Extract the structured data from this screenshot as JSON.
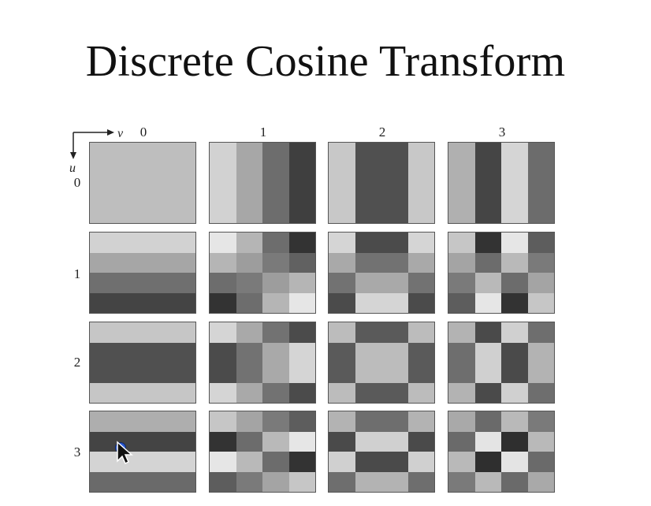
{
  "title": "Discrete Cosine Transform",
  "axis": {
    "v_label": "v",
    "u_label": "u"
  },
  "columns": [
    {
      "label": "0"
    },
    {
      "label": "1"
    },
    {
      "label": "2"
    },
    {
      "label": "3"
    }
  ],
  "rows": [
    {
      "label": "0"
    },
    {
      "label": "1"
    },
    {
      "label": "2"
    },
    {
      "label": "3"
    }
  ],
  "basis_tiles": [
    {
      "u": 0,
      "v": 0,
      "grid": [
        [
          "#bebebe"
        ]
      ]
    },
    {
      "u": 0,
      "v": 1,
      "grid": [
        [
          "#d2d2d2",
          "#a7a7a7",
          "#6d6d6d",
          "#3f3f3f"
        ]
      ]
    },
    {
      "u": 0,
      "v": 2,
      "grid": [
        [
          "#c8c8c8",
          "#505050",
          "#505050",
          "#c8c8c8"
        ]
      ]
    },
    {
      "u": 0,
      "v": 3,
      "grid": [
        [
          "#b0b0b0",
          "#454545",
          "#d5d5d5",
          "#6c6c6c"
        ]
      ]
    },
    {
      "u": 1,
      "v": 0,
      "grid": [
        [
          "#d2d2d2"
        ],
        [
          "#a6a6a6"
        ],
        [
          "#6f6f6f"
        ],
        [
          "#444444"
        ]
      ]
    },
    {
      "u": 1,
      "v": 1,
      "grid": [
        [
          "#e6e6e6",
          "#b5b5b5",
          "#6d6d6d",
          "#333333"
        ],
        [
          "#b5b5b5",
          "#9d9d9d",
          "#7a7a7a",
          "#616161"
        ],
        [
          "#6d6d6d",
          "#7a7a7a",
          "#9d9d9d",
          "#b5b5b5"
        ],
        [
          "#333333",
          "#6d6d6d",
          "#b5b5b5",
          "#e6e6e6"
        ]
      ]
    },
    {
      "u": 1,
      "v": 2,
      "grid": [
        [
          "#d5d5d5",
          "#4b4b4b",
          "#4b4b4b",
          "#d5d5d5"
        ],
        [
          "#a9a9a9",
          "#727272",
          "#727272",
          "#a9a9a9"
        ],
        [
          "#727272",
          "#a9a9a9",
          "#a9a9a9",
          "#727272"
        ],
        [
          "#4b4b4b",
          "#d5d5d5",
          "#d5d5d5",
          "#4b4b4b"
        ]
      ]
    },
    {
      "u": 1,
      "v": 3,
      "grid": [
        [
          "#c6c6c6",
          "#333333",
          "#e6e6e6",
          "#5d5d5d"
        ],
        [
          "#a4a4a4",
          "#6c6c6c",
          "#b9b9b9",
          "#7a7a7a"
        ],
        [
          "#7a7a7a",
          "#b9b9b9",
          "#6c6c6c",
          "#a4a4a4"
        ],
        [
          "#5d5d5d",
          "#e6e6e6",
          "#333333",
          "#c6c6c6"
        ]
      ]
    },
    {
      "u": 2,
      "v": 0,
      "grid": [
        [
          "#c6c6c6"
        ],
        [
          "#505050"
        ],
        [
          "#505050"
        ],
        [
          "#c6c6c6"
        ]
      ]
    },
    {
      "u": 2,
      "v": 1,
      "grid": [
        [
          "#d5d5d5",
          "#a9a9a9",
          "#727272",
          "#4b4b4b"
        ],
        [
          "#4b4b4b",
          "#727272",
          "#a9a9a9",
          "#d5d5d5"
        ],
        [
          "#4b4b4b",
          "#727272",
          "#a9a9a9",
          "#d5d5d5"
        ],
        [
          "#d5d5d5",
          "#a9a9a9",
          "#727272",
          "#4b4b4b"
        ]
      ]
    },
    {
      "u": 2,
      "v": 2,
      "grid": [
        [
          "#bcbcbc",
          "#5a5a5a",
          "#5a5a5a",
          "#bcbcbc"
        ],
        [
          "#5a5a5a",
          "#bcbcbc",
          "#bcbcbc",
          "#5a5a5a"
        ],
        [
          "#5a5a5a",
          "#bcbcbc",
          "#bcbcbc",
          "#5a5a5a"
        ],
        [
          "#bcbcbc",
          "#5a5a5a",
          "#5a5a5a",
          "#bcbcbc"
        ]
      ]
    },
    {
      "u": 2,
      "v": 3,
      "grid": [
        [
          "#b3b3b3",
          "#4a4a4a",
          "#d0d0d0",
          "#6e6e6e"
        ],
        [
          "#6e6e6e",
          "#d0d0d0",
          "#4a4a4a",
          "#b3b3b3"
        ],
        [
          "#6e6e6e",
          "#d0d0d0",
          "#4a4a4a",
          "#b3b3b3"
        ],
        [
          "#b3b3b3",
          "#4a4a4a",
          "#d0d0d0",
          "#6e6e6e"
        ]
      ]
    },
    {
      "u": 3,
      "v": 0,
      "grid": [
        [
          "#aeaeae"
        ],
        [
          "#444444"
        ],
        [
          "#d4d4d4"
        ],
        [
          "#6a6a6a"
        ]
      ]
    },
    {
      "u": 3,
      "v": 1,
      "grid": [
        [
          "#c6c6c6",
          "#a4a4a4",
          "#7a7a7a",
          "#5d5d5d"
        ],
        [
          "#333333",
          "#6c6c6c",
          "#b9b9b9",
          "#e6e6e6"
        ],
        [
          "#e6e6e6",
          "#b9b9b9",
          "#6c6c6c",
          "#333333"
        ],
        [
          "#5d5d5d",
          "#7a7a7a",
          "#a4a4a4",
          "#c6c6c6"
        ]
      ]
    },
    {
      "u": 3,
      "v": 2,
      "grid": [
        [
          "#b3b3b3",
          "#6e6e6e",
          "#6e6e6e",
          "#b3b3b3"
        ],
        [
          "#4a4a4a",
          "#d0d0d0",
          "#d0d0d0",
          "#4a4a4a"
        ],
        [
          "#d0d0d0",
          "#4a4a4a",
          "#4a4a4a",
          "#d0d0d0"
        ],
        [
          "#6e6e6e",
          "#b3b3b3",
          "#b3b3b3",
          "#6e6e6e"
        ]
      ]
    },
    {
      "u": 3,
      "v": 3,
      "grid": [
        [
          "#a9a9a9",
          "#6a6a6a",
          "#b9b9b9",
          "#7a7a7a"
        ],
        [
          "#6a6a6a",
          "#e4e4e4",
          "#2f2f2f",
          "#b9b9b9"
        ],
        [
          "#b9b9b9",
          "#2f2f2f",
          "#e4e4e4",
          "#6a6a6a"
        ],
        [
          "#7a7a7a",
          "#b9b9b9",
          "#6a6a6a",
          "#a9a9a9"
        ]
      ]
    }
  ],
  "cursor": {
    "icon": "mouse-pointer-icon",
    "dot_color": "#2c5bd6"
  }
}
